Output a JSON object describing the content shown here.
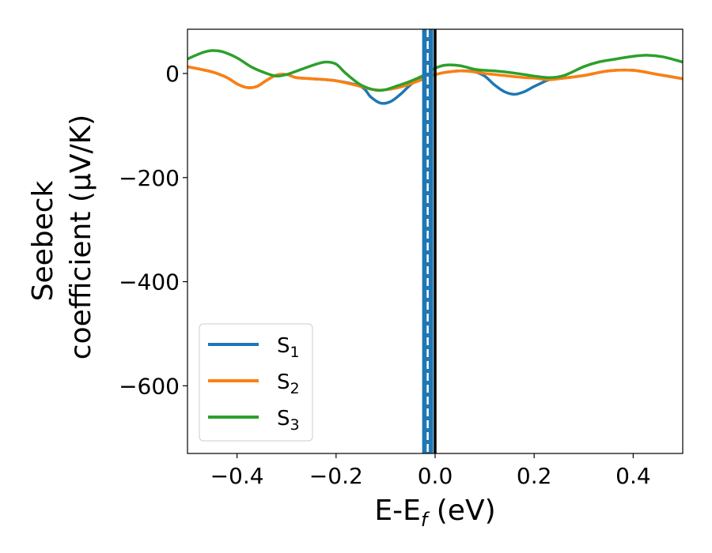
{
  "chart_data": {
    "type": "line",
    "title": "",
    "xlabel": "E-E_f (eV)",
    "xlabel_parts": {
      "base": "E-E",
      "sub": "f",
      "unit": " (eV)"
    },
    "ylabel_line1": "Seebeck",
    "ylabel_line2": "coefficient  (μV/K)",
    "xlim": [
      -0.5,
      0.5
    ],
    "ylim": [
      -730,
      85
    ],
    "xticks": [
      {
        "value": -0.4,
        "label": "−0.4"
      },
      {
        "value": -0.2,
        "label": "−0.2"
      },
      {
        "value": 0.0,
        "label": "0.0"
      },
      {
        "value": 0.2,
        "label": "0.2"
      },
      {
        "value": 0.4,
        "label": "0.4"
      }
    ],
    "yticks": [
      {
        "value": 0,
        "label": "0"
      },
      {
        "value": -200,
        "label": "−200"
      },
      {
        "value": -400,
        "label": "−400"
      },
      {
        "value": -600,
        "label": "−600"
      }
    ],
    "grid": false,
    "legend_position": "lower-left",
    "vertical_lines": [
      {
        "x": -0.015,
        "style": "dashed-band",
        "color": "#1f77b4"
      },
      {
        "x": 0.0,
        "style": "solid",
        "color": "#000000"
      }
    ],
    "series": [
      {
        "name": "S",
        "sub": "1",
        "color": "#1f77b4",
        "x": [
          -0.5,
          -0.45,
          -0.42,
          -0.4,
          -0.38,
          -0.36,
          -0.34,
          -0.32,
          -0.3,
          -0.28,
          -0.25,
          -0.2,
          -0.15,
          -0.13,
          -0.11,
          -0.09,
          -0.07,
          -0.05,
          -0.03,
          -0.01,
          0.0,
          0.02,
          0.05,
          0.08,
          0.1,
          0.12,
          0.14,
          0.16,
          0.18,
          0.2,
          0.23,
          0.25,
          0.3,
          0.35,
          0.4,
          0.45,
          0.5
        ],
        "y": [
          13,
          3,
          -8,
          -20,
          -27,
          -25,
          -13,
          -3,
          -2,
          -8,
          -10,
          -14,
          -25,
          -45,
          -57,
          -54,
          -40,
          -22,
          -8,
          -3,
          -2,
          2,
          5,
          3,
          -5,
          -22,
          -35,
          -40,
          -35,
          -25,
          -12,
          -10,
          -4,
          5,
          6,
          -2,
          -10
        ]
      },
      {
        "name": "S",
        "sub": "2",
        "color": "#ff7f0e",
        "x": [
          -0.5,
          -0.45,
          -0.42,
          -0.4,
          -0.38,
          -0.36,
          -0.34,
          -0.32,
          -0.3,
          -0.28,
          -0.25,
          -0.2,
          -0.15,
          -0.13,
          -0.11,
          -0.09,
          -0.07,
          -0.05,
          -0.03,
          -0.01,
          0.0,
          0.02,
          0.05,
          0.08,
          0.1,
          0.12,
          0.14,
          0.16,
          0.18,
          0.2,
          0.23,
          0.25,
          0.3,
          0.35,
          0.4,
          0.45,
          0.5
        ],
        "y": [
          13,
          3,
          -8,
          -20,
          -27,
          -25,
          -13,
          -3,
          -2,
          -8,
          -10,
          -14,
          -25,
          -30,
          -32,
          -30,
          -26,
          -20,
          -13,
          -6,
          -2,
          2,
          5,
          3,
          0,
          -2,
          -4,
          -6,
          -8,
          -9,
          -12,
          -10,
          -4,
          5,
          6,
          -2,
          -10
        ]
      },
      {
        "name": "S",
        "sub": "3",
        "color": "#2ca02c",
        "x": [
          -0.5,
          -0.47,
          -0.45,
          -0.43,
          -0.4,
          -0.37,
          -0.34,
          -0.32,
          -0.3,
          -0.27,
          -0.24,
          -0.22,
          -0.2,
          -0.18,
          -0.15,
          -0.12,
          -0.1,
          -0.08,
          -0.05,
          -0.02,
          0.0,
          0.02,
          0.05,
          0.08,
          0.1,
          0.12,
          0.15,
          0.18,
          0.2,
          0.23,
          0.26,
          0.3,
          0.33,
          0.36,
          0.4,
          0.43,
          0.46,
          0.5
        ],
        "y": [
          28,
          40,
          44,
          42,
          30,
          12,
          0,
          -5,
          -2,
          8,
          18,
          22,
          18,
          0,
          -22,
          -32,
          -31,
          -25,
          -15,
          -2,
          10,
          16,
          15,
          8,
          6,
          5,
          2,
          -2,
          -5,
          -8,
          -4,
          13,
          22,
          27,
          33,
          35,
          32,
          22
        ]
      }
    ]
  }
}
